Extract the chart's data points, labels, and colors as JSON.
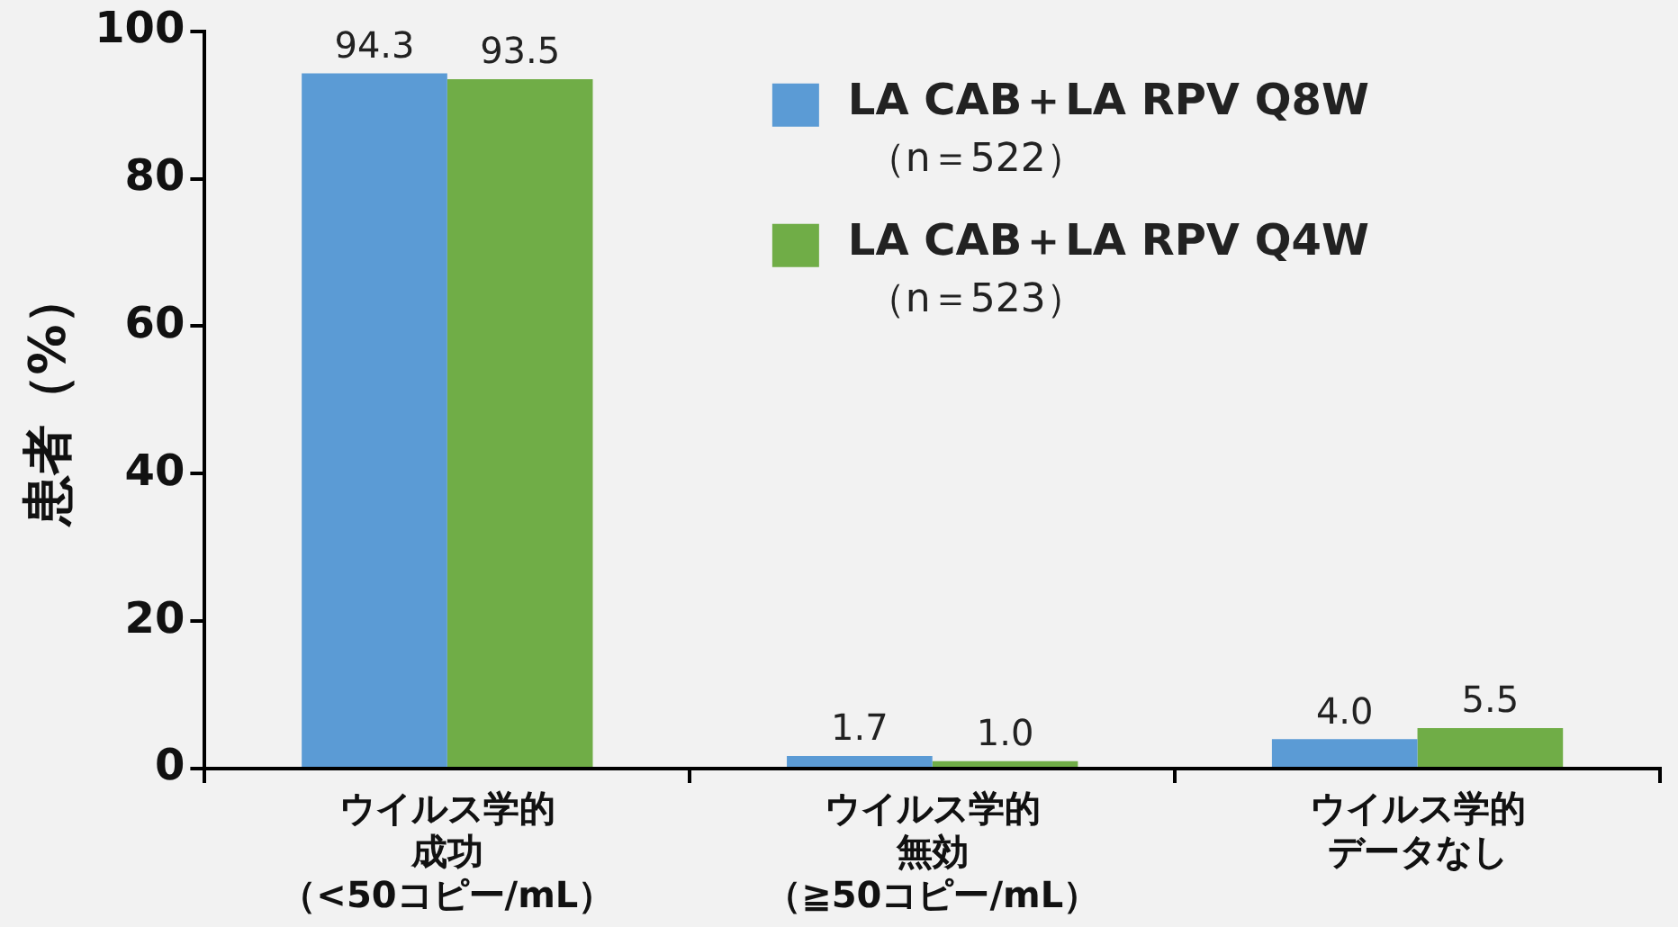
{
  "chart_data": {
    "type": "bar",
    "ylabel": "患者（%）",
    "categories": [
      "ウイルス学的成功（<50コピー/mL）",
      "ウイルス学的無効（≧50コピー/mL）",
      "ウイルス学的データなし"
    ],
    "series": [
      {
        "name": "LA CAB＋LA RPV Q8W\n（n＝522）",
        "color": "#5b9bd5",
        "values": [
          94.3,
          1.7,
          4.0
        ],
        "value_labels": [
          "94.3",
          "1.7",
          "4.0"
        ]
      },
      {
        "name": "LA CAB＋LA RPV Q4W\n（n＝523）",
        "color": "#70ad47",
        "values": [
          93.5,
          1.0,
          5.5
        ],
        "value_labels": [
          "93.5",
          "1.0",
          "5.5"
        ]
      }
    ],
    "ylim": [
      0,
      100
    ],
    "yticks": [
      0,
      20,
      40,
      60,
      80,
      100
    ],
    "grid": false,
    "legend": "top right"
  }
}
